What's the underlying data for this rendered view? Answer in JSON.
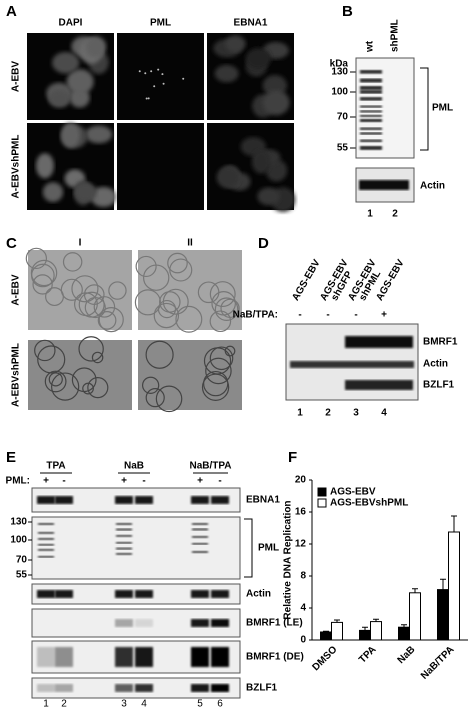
{
  "panel_a": {
    "label": "A",
    "columns": [
      "DAPI",
      "PML",
      "EBNA1"
    ],
    "rows": [
      "A-EBV",
      "A-EBVshPML"
    ]
  },
  "panel_b": {
    "label": "B",
    "lanes": [
      "wt",
      "shPML"
    ],
    "unit": "kDa",
    "markers": [
      "130",
      "100",
      "70",
      "55"
    ],
    "blots": [
      "PML",
      "Actin"
    ],
    "lane_numbers": [
      "1",
      "2"
    ]
  },
  "panel_c": {
    "label": "C",
    "columns": [
      "I",
      "II"
    ],
    "rows": [
      "A-EBV",
      "A-EBVshPML"
    ]
  },
  "panel_d": {
    "label": "D",
    "lanes": [
      [
        "AGS-EBV"
      ],
      [
        "AGS-EBV",
        "shGFP"
      ],
      [
        "AGS-EBV",
        "shPML"
      ],
      [
        "AGS-EBV"
      ]
    ],
    "treatment": "NaB/TPA:",
    "treatment_signs": [
      "-",
      "-",
      "-",
      "+"
    ],
    "blots": [
      "BMRF1",
      "Actin",
      "BZLF1"
    ],
    "lane_numbers": [
      "1",
      "2",
      "3",
      "4"
    ]
  },
  "panel_e": {
    "label": "E",
    "groups": [
      "TPA",
      "NaB",
      "NaB/TPA"
    ],
    "pml_label": "PML:",
    "pml_signs": [
      "+",
      "-",
      "+",
      "-",
      "+",
      "-"
    ],
    "markers": [
      "130",
      "100",
      "70",
      "55"
    ],
    "blots": [
      "EBNA1",
      "PML",
      "Actin",
      "BMRF1 (LE)",
      "BMRF1 (DE)",
      "BZLF1"
    ],
    "lane_numbers": [
      "1",
      "2",
      "3",
      "4",
      "5",
      "6"
    ]
  },
  "panel_f": {
    "label": "F"
  },
  "chart_data": {
    "type": "bar",
    "y_label": "Relative DNA Replication",
    "categories": [
      "DMSO",
      "TPA",
      "NaB",
      "NaB/TPA"
    ],
    "series": [
      {
        "name": "AGS-EBV",
        "color": "#000000",
        "values": [
          1,
          1.2,
          1.6,
          6.3
        ],
        "errors": [
          0.1,
          0.4,
          0.3,
          1.3
        ]
      },
      {
        "name": "AGS-EBVshPML",
        "color": "#ffffff",
        "values": [
          2.2,
          2.3,
          5.9,
          13.5
        ],
        "errors": [
          0.3,
          0.3,
          0.5,
          2
        ]
      }
    ],
    "ylim": [
      0,
      20
    ],
    "yticks": [
      0,
      4,
      8,
      12,
      16,
      20
    ],
    "legend": "upper left"
  }
}
